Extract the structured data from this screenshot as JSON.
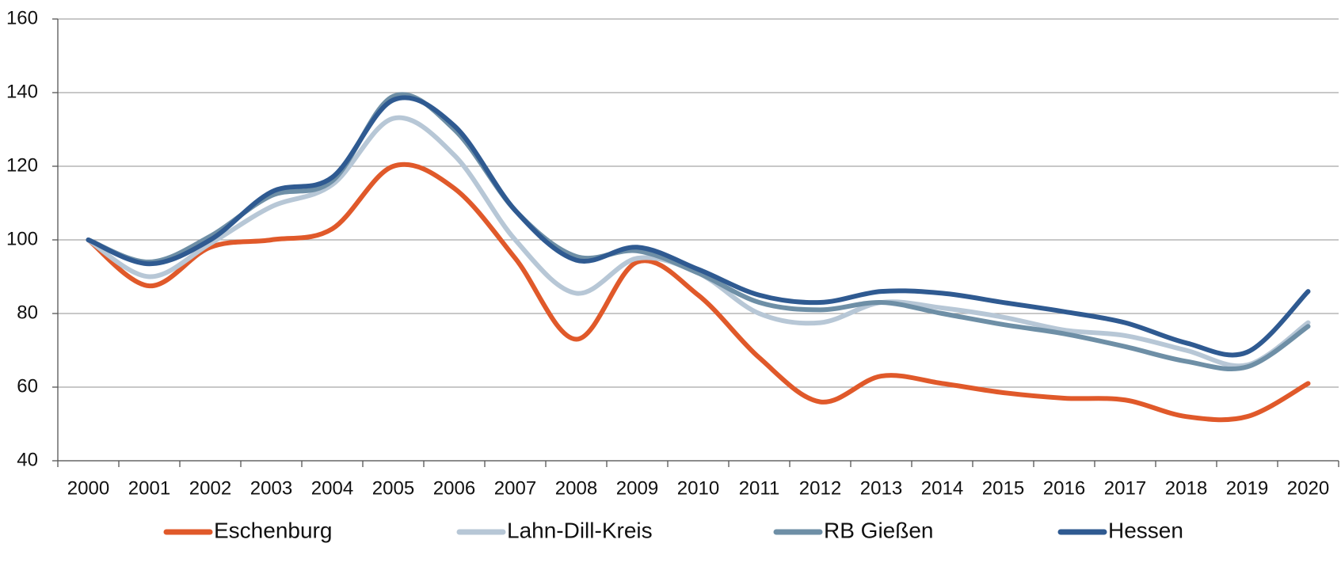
{
  "chart_data": {
    "type": "line",
    "categories": [
      "2000",
      "2001",
      "2002",
      "2003",
      "2004",
      "2005",
      "2006",
      "2007",
      "2008",
      "2009",
      "2010",
      "2011",
      "2012",
      "2013",
      "2014",
      "2015",
      "2016",
      "2017",
      "2018",
      "2019",
      "2020"
    ],
    "series": [
      {
        "name": "Eschenburg",
        "color": "#e0592a",
        "values": [
          100,
          87.5,
          98,
          100,
          103,
          120,
          114,
          95,
          73,
          94,
          85,
          68,
          56,
          63,
          61,
          58.5,
          57,
          56.5,
          52,
          52,
          61
        ]
      },
      {
        "name": "Lahn-Dill-Kreis",
        "color": "#b7c7d6",
        "values": [
          100,
          90,
          99,
          109,
          115,
          133,
          123,
          100,
          85.5,
          95,
          91,
          80,
          77.5,
          83,
          81.5,
          79,
          75.5,
          74,
          70,
          66,
          77.5
        ]
      },
      {
        "name": "RB Gießen",
        "color": "#6e8fa6",
        "values": [
          100,
          94,
          101,
          112,
          116,
          139,
          130,
          108,
          95.5,
          97,
          91,
          83,
          81,
          83,
          80,
          77,
          74.5,
          71,
          67,
          65.5,
          76.5
        ]
      },
      {
        "name": "Hessen",
        "color": "#2f5a91",
        "values": [
          100,
          93.5,
          100,
          113,
          117,
          138,
          131,
          108,
          94.5,
          98,
          92,
          85,
          83,
          86,
          85.5,
          83,
          80.5,
          77.5,
          72,
          69.5,
          86
        ]
      }
    ],
    "ylim": [
      40,
      160
    ],
    "yticks": [
      40,
      60,
      80,
      100,
      120,
      140,
      160
    ],
    "grid": true,
    "legend": "bottom"
  }
}
